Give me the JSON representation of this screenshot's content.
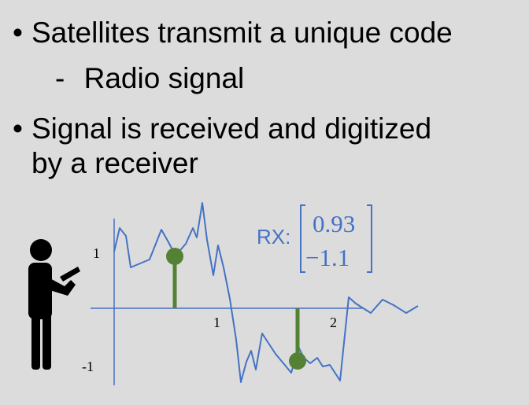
{
  "slide": {
    "bullets": [
      {
        "marker": "•",
        "text": "Satellites transmit a unique code",
        "sub": {
          "marker": "-",
          "text": "Radio signal"
        }
      },
      {
        "marker": "•",
        "text_line1": "Signal is received and digitized",
        "text_line2": "by a receiver"
      }
    ]
  },
  "figure": {
    "tick_labels": {
      "x1": "1",
      "x2": "2",
      "y1": "1",
      "ym1": "-1"
    },
    "rx_label": "RX:",
    "rx_values": [
      "0.93",
      "−1.1"
    ],
    "colors": {
      "signal": "#4472c4",
      "samples": "#548235",
      "axis": "#4472c4",
      "person": "#000000"
    },
    "icon": "person-with-phone-icon"
  }
}
